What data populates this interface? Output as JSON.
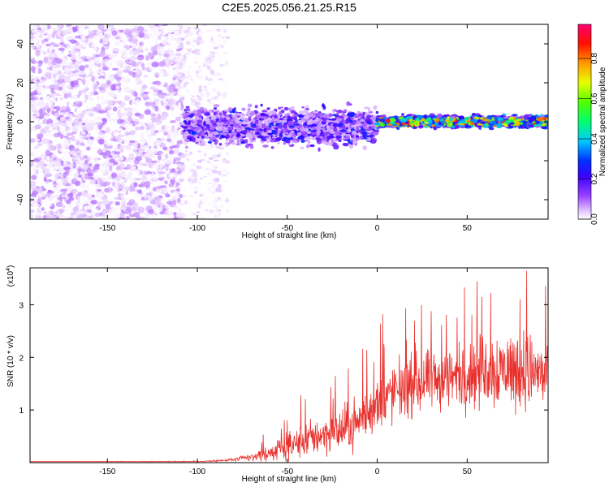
{
  "title": "C2E5.2025.056.21.25.R15",
  "colors": {
    "snr_line": "#e8302c",
    "spectrogram_low": "#b37bff",
    "spectrogram_mid": "#6a00ff",
    "axis": "#000000"
  },
  "chart_data": [
    {
      "type": "heatmap",
      "name": "spectrogram",
      "xlabel": "Height of straight line (km)",
      "ylabel": "Frequency (Hz)",
      "xlim": [
        -193,
        95
      ],
      "ylim": [
        -50,
        50
      ],
      "xticks": [
        -150,
        -100,
        -50,
        0,
        50
      ],
      "yticks": [
        -40,
        -20,
        0,
        20,
        40
      ],
      "colorbar": {
        "label": "Normalized spectral amplitude",
        "range": [
          0,
          0.97
        ],
        "ticks": [
          "0.0",
          "0.2",
          "0.4",
          "0.6",
          "0.8"
        ],
        "colormap": "rainbow (white-lilac, purple, blue, cyan, green, yellow, orange, red, pink)"
      },
      "regions": [
        {
          "x_range": [
            -193,
            -108
          ],
          "description": "noise, broadband",
          "freq_range": [
            -50,
            50
          ],
          "amplitude_range": [
            0.0,
            0.1
          ]
        },
        {
          "x_range": [
            -108,
            -83
          ],
          "description": "sparse noise",
          "freq_range": [
            -50,
            50
          ],
          "amplitude_range": [
            0.0,
            0.05
          ]
        },
        {
          "x_range": [
            -108,
            0
          ],
          "description": "signal band",
          "freq_range": [
            -15,
            10
          ],
          "amplitude_range": [
            0.05,
            0.3
          ]
        },
        {
          "x_range": [
            0,
            95
          ],
          "description": "narrow signal band",
          "freq_range": [
            -4,
            4
          ],
          "amplitude_range": [
            0.2,
            0.95
          ]
        }
      ]
    },
    {
      "type": "line",
      "name": "snr",
      "xlabel": "Height of straight line (km)",
      "ylabel": "SNR (10 * v/v)",
      "y_multiplier": "(x10",
      "y_multiplier_exp": "4",
      "y_multiplier_close": ")",
      "xlim": [
        -193,
        95
      ],
      "ylim": [
        0,
        3.7
      ],
      "xticks": [
        -150,
        -100,
        -50,
        0,
        50
      ],
      "yticks": [
        1,
        2,
        3
      ],
      "envelope": {
        "x": [
          -193,
          -100,
          -85,
          -70,
          -60,
          -50,
          -40,
          -30,
          -20,
          -10,
          0,
          10,
          20,
          30,
          40,
          50,
          60,
          70,
          80,
          90,
          95
        ],
        "y_mean": [
          0.02,
          0.02,
          0.04,
          0.1,
          0.18,
          0.3,
          0.42,
          0.55,
          0.6,
          0.8,
          1.1,
          1.35,
          1.45,
          1.55,
          1.6,
          1.65,
          1.75,
          1.8,
          1.75,
          1.7,
          1.6
        ],
        "y_spread": [
          0.0,
          0.01,
          0.05,
          0.15,
          0.3,
          0.5,
          0.7,
          0.8,
          0.9,
          1.0,
          1.1,
          1.2,
          1.2,
          1.2,
          1.3,
          1.3,
          1.5,
          1.6,
          1.6,
          1.5,
          1.4
        ]
      }
    }
  ],
  "labels": {
    "top_xlabel": "Height of straight line (km)",
    "top_ylabel": "Frequency (Hz)",
    "bottom_xlabel": "Height of straight line (km)",
    "bottom_ylabel": "SNR (10 * v/v)",
    "colorbar_label": "Normalized spectral amplitude"
  }
}
